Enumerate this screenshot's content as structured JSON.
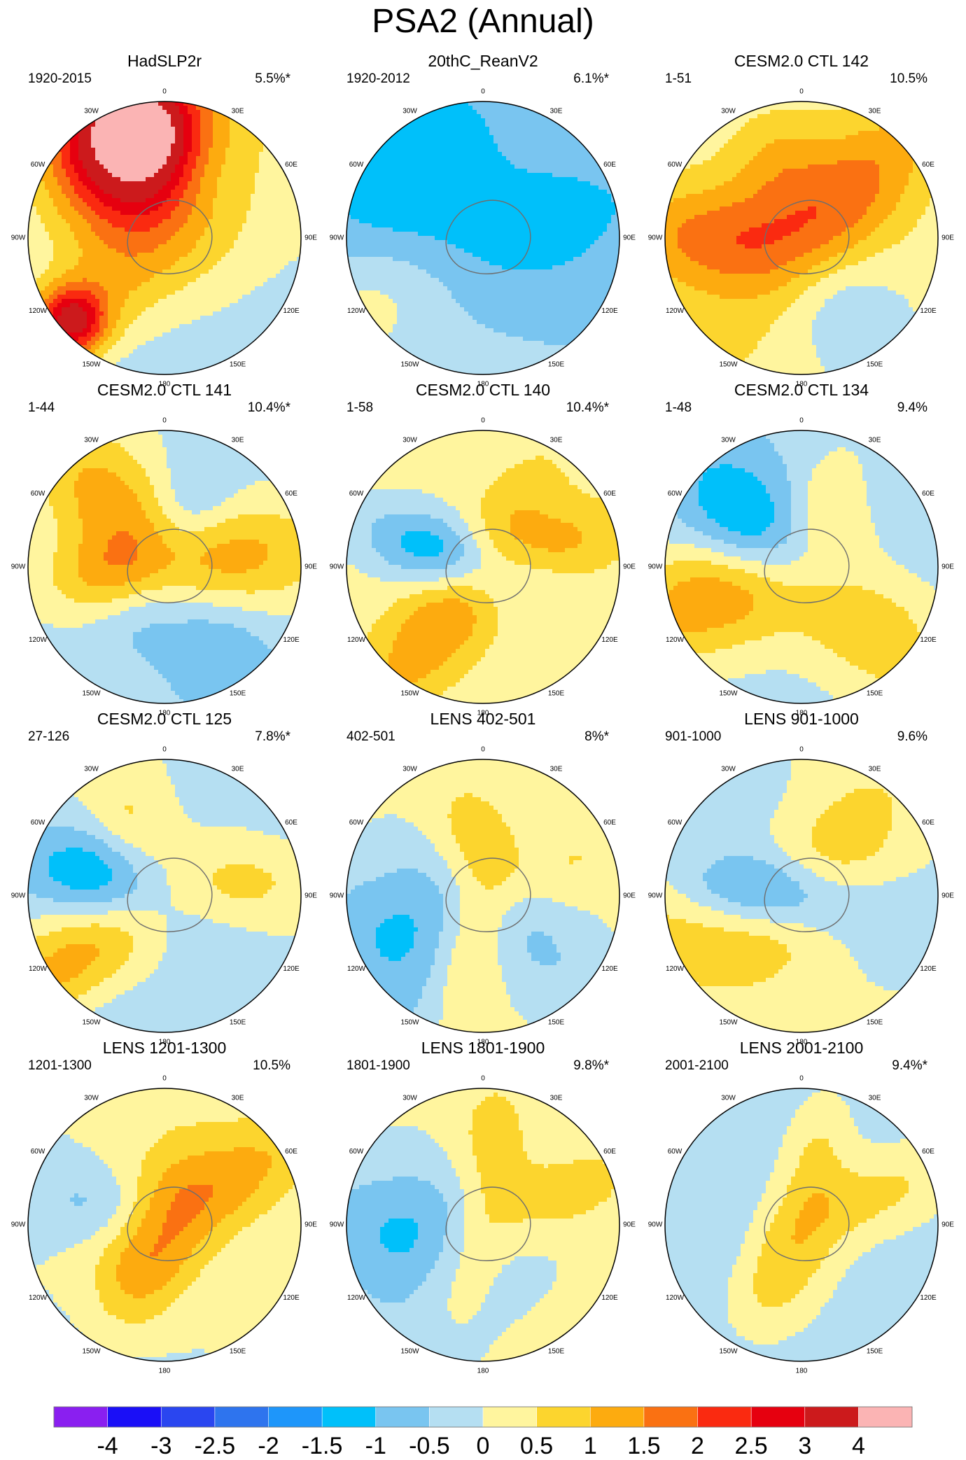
{
  "figure_title": "PSA2 (Annual)",
  "chart_data": {
    "type": "heatmap",
    "title": "PSA2 (Annual)",
    "projection": "south polar stereographic",
    "longitude_labels": [
      "0",
      "30E",
      "60E",
      "90E",
      "120E",
      "150E",
      "180",
      "150W",
      "120W",
      "90W",
      "60W",
      "30W"
    ],
    "colorbar": {
      "tick_labels": [
        "-4",
        "-3",
        "-2.5",
        "-2",
        "-1.5",
        "-1",
        "-0.5",
        "0",
        "0.5",
        "1",
        "1.5",
        "2",
        "2.5",
        "3",
        "4"
      ],
      "colors": [
        "#8a1ff0",
        "#1a0ff7",
        "#2a46f0",
        "#2e74ee",
        "#1e96fa",
        "#00c0fa",
        "#79c5f0",
        "#b5dff2",
        "#fff59e",
        "#fcd52e",
        "#fdab0f",
        "#fa7112",
        "#fa2a10",
        "#e6000f",
        "#cc1a1c",
        "#fbb4b4"
      ]
    },
    "panels": [
      {
        "title": "HadSLP2r",
        "period": "1920-2015",
        "variance": "5.5%*",
        "blobs": [
          [
            0.95,
            0.93,
            1.9,
            0.75,
            0.5
          ],
          [
            -0.3,
            0.75,
            0.7,
            0.5,
            2.6
          ],
          [
            -0.35,
            0.75,
            0.35,
            0.35,
            2.6
          ],
          [
            -0.25,
            0.8,
            0.15,
            0.15,
            2.8
          ],
          [
            0.5,
            0.55,
            0.25,
            0.25,
            -0.6
          ],
          [
            -2.3,
            0.62,
            0.38,
            0.25,
            0.7
          ],
          [
            -2.3,
            0.92,
            0.18,
            0.18,
            3.0
          ],
          [
            3.0,
            0.35,
            1.2,
            0.7,
            -0.4
          ]
        ],
        "base": -0.3
      },
      {
        "title": "20thC_ReanV2",
        "period": "1920-2012",
        "variance": "6.1%*",
        "blobs": [
          [
            -0.9,
            0.45,
            0.9,
            0.55,
            -1.5
          ],
          [
            -0.3,
            0.1,
            0.45,
            0.45,
            0.7
          ],
          [
            -2.1,
            0.82,
            0.4,
            0.3,
            0.7
          ],
          [
            1.3,
            0.6,
            0.55,
            0.25,
            -0.7
          ],
          [
            0.0,
            0.8,
            1.3,
            0.5,
            -0.35
          ],
          [
            3.0,
            0.7,
            1.0,
            0.4,
            0.3
          ]
        ],
        "base": -0.2
      },
      {
        "title": "CESM2.0 CTL 142",
        "period": "1-51",
        "variance": "10.5%",
        "blobs": [
          [
            0.8,
            0.45,
            0.55,
            0.28,
            1.5
          ],
          [
            -1.55,
            0.55,
            0.55,
            0.28,
            1.5
          ],
          [
            -0.3,
            0.6,
            0.25,
            0.25,
            0.8
          ],
          [
            2.6,
            0.6,
            0.6,
            0.3,
            -0.7
          ],
          [
            -2.5,
            0.95,
            0.6,
            0.5,
            0.3
          ]
        ],
        "base": 0.2
      },
      {
        "title": "CESM2.0 CTL 141",
        "period": "1-44",
        "variance": "10.4%*",
        "blobs": [
          [
            -0.7,
            0.55,
            0.55,
            0.3,
            1.5
          ],
          [
            1.45,
            0.45,
            0.55,
            0.28,
            1.4
          ],
          [
            -1.7,
            0.45,
            0.35,
            0.2,
            0.8
          ],
          [
            2.6,
            0.6,
            0.6,
            0.3,
            -1.0
          ],
          [
            0.4,
            0.45,
            0.3,
            0.2,
            -0.7
          ],
          [
            -2.6,
            0.35,
            0.3,
            0.2,
            -0.5
          ]
        ],
        "base": -0.15
      },
      {
        "title": "CESM2.0 CTL 140",
        "period": "1-58",
        "variance": "10.4%*",
        "blobs": [
          [
            -1.25,
            0.25,
            0.45,
            0.2,
            -1.8
          ],
          [
            -2.5,
            0.55,
            0.7,
            0.25,
            1.5
          ],
          [
            1.3,
            0.65,
            0.35,
            0.2,
            0.8
          ],
          [
            -2.6,
            0.9,
            0.6,
            0.3,
            -0.4
          ],
          [
            0.5,
            0.2,
            0.6,
            0.2,
            0.3
          ]
        ],
        "base": 0.2
      },
      {
        "title": "CESM2.0 CTL 134",
        "period": "1-48",
        "variance": "9.4%",
        "blobs": [
          [
            -0.95,
            0.35,
            0.45,
            0.25,
            -1.5
          ],
          [
            -1.9,
            0.65,
            0.6,
            0.3,
            1.6
          ],
          [
            2.3,
            0.55,
            0.6,
            0.3,
            1.2
          ],
          [
            0.35,
            0.55,
            0.25,
            0.15,
            0.6
          ],
          [
            -0.6,
            0.8,
            0.5,
            0.3,
            -0.5
          ],
          [
            1.6,
            0.4,
            0.3,
            0.2,
            -0.3
          ]
        ],
        "base": -0.2
      },
      {
        "title": "CESM2.0 CTL 125",
        "period": "27-126",
        "variance": "7.8%*",
        "blobs": [
          [
            -1.3,
            0.4,
            0.5,
            0.25,
            -1.6
          ],
          [
            -2.2,
            0.6,
            0.7,
            0.25,
            1.6
          ],
          [
            -0.45,
            0.55,
            0.3,
            0.2,
            0.8
          ],
          [
            1.45,
            0.58,
            0.35,
            0.2,
            0.8
          ],
          [
            -2.6,
            0.95,
            0.6,
            0.3,
            -0.4
          ],
          [
            0.9,
            0.7,
            1.0,
            0.4,
            -0.3
          ]
        ],
        "base": 0.0
      },
      {
        "title": "LENS 402-501",
        "period": "402-501",
        "variance": "8%*",
        "blobs": [
          [
            -1.9,
            0.75,
            0.6,
            0.35,
            -1.0
          ],
          [
            -0.25,
            0.45,
            0.3,
            0.2,
            0.7
          ],
          [
            -2.9,
            0.3,
            0.5,
            0.2,
            1.2
          ],
          [
            2.3,
            0.5,
            0.6,
            0.25,
            -0.6
          ],
          [
            1.2,
            0.6,
            0.4,
            0.2,
            0.5
          ],
          [
            -2.6,
            0.9,
            0.6,
            0.3,
            -0.6
          ]
        ],
        "base": 0.1
      },
      {
        "title": "LENS 901-1000",
        "period": "901-1000",
        "variance": "9.6%",
        "blobs": [
          [
            -1.45,
            0.25,
            0.45,
            0.2,
            -1.8
          ],
          [
            0.7,
            0.2,
            0.6,
            0.3,
            1.0
          ],
          [
            -1.8,
            0.75,
            0.6,
            0.35,
            0.7
          ],
          [
            1.7,
            0.8,
            0.9,
            0.4,
            -0.3
          ],
          [
            -0.5,
            0.75,
            0.7,
            0.35,
            -0.3
          ]
        ],
        "base": 0.1
      },
      {
        "title": "LENS 1201-1300",
        "period": "1201-1300",
        "variance": "10.5%",
        "blobs": [
          [
            -2.7,
            0.35,
            0.5,
            0.25,
            1.6
          ],
          [
            1.0,
            0.6,
            0.6,
            0.25,
            1.1
          ],
          [
            -1.3,
            0.45,
            0.4,
            0.2,
            -0.7
          ],
          [
            -2.7,
            0.9,
            0.6,
            0.3,
            -0.7
          ],
          [
            0.0,
            0.8,
            0.8,
            0.35,
            0.3
          ]
        ],
        "base": 0.0
      },
      {
        "title": "LENS 1801-1900",
        "period": "1801-1900",
        "variance": "9.8%*",
        "blobs": [
          [
            -1.65,
            0.6,
            0.6,
            0.35,
            -1.1
          ],
          [
            -2.7,
            0.25,
            0.45,
            0.2,
            0.9
          ],
          [
            0.1,
            0.6,
            0.35,
            0.2,
            0.7
          ],
          [
            1.2,
            0.6,
            0.4,
            0.2,
            0.8
          ],
          [
            -2.6,
            0.85,
            0.7,
            0.3,
            -0.5
          ]
        ],
        "base": 0.1
      },
      {
        "title": "LENS 2001-2100",
        "period": "2001-2100",
        "variance": "9.4%*",
        "blobs": [
          [
            -2.7,
            0.35,
            0.5,
            0.25,
            1.6
          ],
          [
            1.2,
            0.6,
            0.45,
            0.2,
            0.8
          ],
          [
            0.2,
            0.55,
            0.3,
            0.15,
            0.6
          ],
          [
            -2.7,
            0.85,
            0.7,
            0.3,
            -0.6
          ],
          [
            -1.7,
            0.6,
            0.5,
            0.3,
            -0.3
          ]
        ],
        "base": -0.2
      }
    ]
  }
}
